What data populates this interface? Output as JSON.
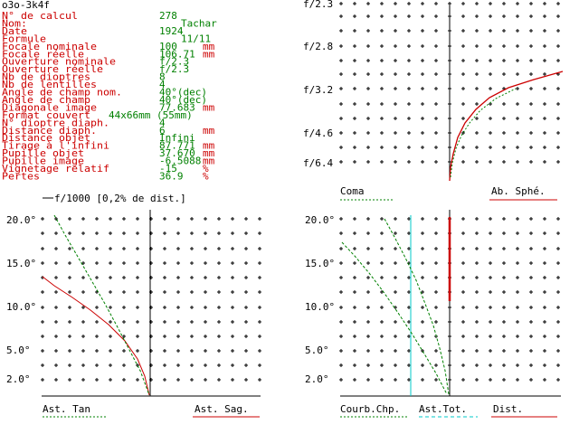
{
  "window": {
    "title": "o3o-3k4f"
  },
  "specs": [
    {
      "label": "N° de calcul",
      "value": "278"
    },
    {
      "label": "Nom:",
      "value": "Tachar"
    },
    {
      "label": "Date",
      "value": "1924"
    },
    {
      "label": "Formule",
      "value": "11/11"
    },
    {
      "label": "Focale nominale",
      "value": "100",
      "unit": "mm"
    },
    {
      "label": "Focale réelle",
      "value": "106.71",
      "unit": "mm"
    },
    {
      "label": "Ouverture nominale",
      "value": "f/2.3"
    },
    {
      "label": "Ouverture réelle",
      "value": "f/2.3"
    },
    {
      "label": "Nb de dioptres",
      "value": "8"
    },
    {
      "label": "Nb de lentilles",
      "value": "4"
    },
    {
      "label": "Angle de champ nom.",
      "value": "40°(dec)"
    },
    {
      "label": "Angle de champ",
      "value": "40°(dec)"
    },
    {
      "label": "Diagonale image",
      "value": "77.683",
      "unit": "mm"
    },
    {
      "label": "Format couvert",
      "value": "44x66mm (55mm)"
    },
    {
      "label": "N° dioptre diaph.",
      "value": "4"
    },
    {
      "label": "Distance diaph.",
      "value": "6",
      "unit": "mm"
    },
    {
      "label": "Distance objet",
      "value": "Infini"
    },
    {
      "label": "Tirage à l'infini",
      "value": "87.771",
      "unit": "mm"
    },
    {
      "label": "Pupille objet",
      "value": "37.670",
      "unit": "mm"
    },
    {
      "label": "Pupille image",
      "value": "-6.5088",
      "unit": "mm"
    },
    {
      "label": "Vignetage relatif",
      "value": "-15",
      "unit": "%"
    },
    {
      "label": "Pertes",
      "value": "36.9",
      "unit": "%"
    }
  ],
  "colors": {
    "label": "#cc0000",
    "value": "#008000",
    "grid": "#000000",
    "red": "#cc0000",
    "green": "#008000",
    "cyan": "#00c8c8",
    "black": "#000000"
  },
  "chart_data": [
    {
      "type": "line",
      "title": "",
      "ylabels": [
        "f/2.3",
        "f/2.8",
        "f/3.2",
        "f/4.6",
        "f/6.4"
      ],
      "grid": true,
      "legend": [
        {
          "name": "Coma",
          "color": "#008000"
        },
        {
          "name": "Ab. Sphé.",
          "color": "#cc0000"
        }
      ]
    },
    {
      "type": "line",
      "title": "f/1000 [0,2% de dist.]",
      "ylabels": [
        "20.0°",
        "15.0°",
        "10.0°",
        "5.0°",
        "2.0°"
      ],
      "grid": true,
      "legend": [
        {
          "name": "Ast. Tan",
          "color": "#008000"
        },
        {
          "name": "Ast. Sag.",
          "color": "#cc0000"
        }
      ]
    },
    {
      "type": "line",
      "title": "",
      "ylabels": [
        "20.0°",
        "15.0°",
        "10.0°",
        "5.0°",
        "2.0°"
      ],
      "grid": true,
      "legend": [
        {
          "name": "Courb.Chp.",
          "color": "#008000"
        },
        {
          "name": "Ast.Tot.",
          "color": "#00c8c8"
        },
        {
          "name": "Dist.",
          "color": "#cc0000"
        }
      ]
    }
  ]
}
